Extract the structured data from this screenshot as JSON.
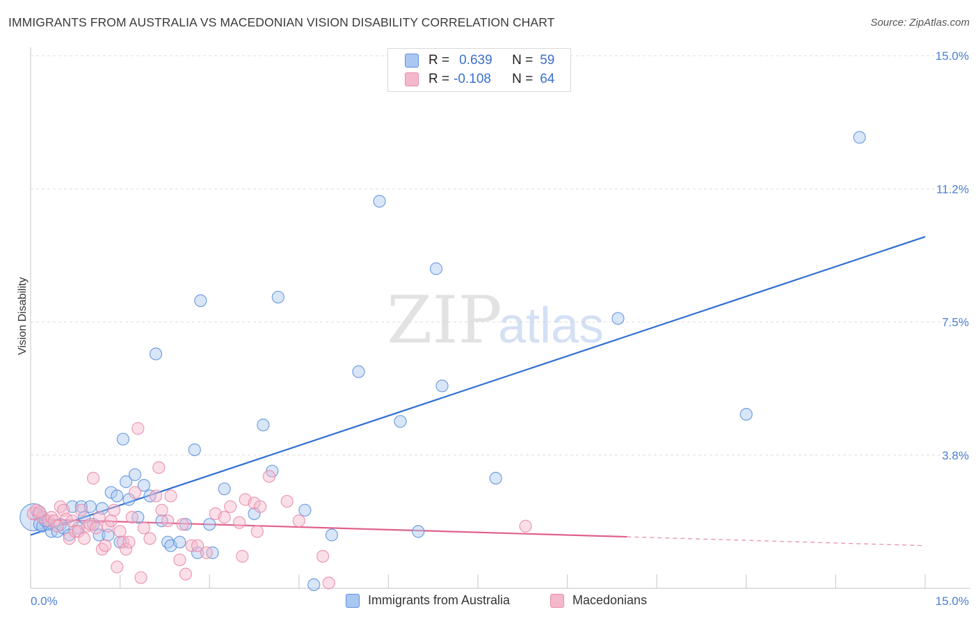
{
  "header": {
    "title": "IMMIGRANTS FROM AUSTRALIA VS MACEDONIAN VISION DISABILITY CORRELATION CHART",
    "source": "Source: ZipAtlas.com"
  },
  "watermark": {
    "zip": "ZIP",
    "atlas": "atlas"
  },
  "legend": {
    "rows": [
      {
        "r_label": "R =",
        "r_value": "0.639",
        "n_label": "N =",
        "n_value": "59"
      },
      {
        "r_label": "R =",
        "r_value": "-0.108",
        "n_label": "N =",
        "n_value": "64"
      }
    ]
  },
  "colors": {
    "blue": "#5b8fdb",
    "blue_fill": "#aac7f0",
    "blue_line": "#2f6fd1",
    "pink": "#e98aa8",
    "pink_fill": "#f4b8cb",
    "pink_line": "#e0608a",
    "axis_text": "#4a7fd4"
  },
  "chart_data": {
    "type": "scatter",
    "title": "IMMIGRANTS FROM AUSTRALIA VS MACEDONIAN VISION DISABILITY CORRELATION CHART",
    "xlabel": "",
    "ylabel": "Vision Disability",
    "xlim": [
      0,
      15
    ],
    "ylim": [
      0,
      15
    ],
    "x_tick_labels": [
      "0.0%",
      "15.0%"
    ],
    "y_tick_labels": [
      "15.0%",
      "11.2%",
      "7.5%",
      "3.8%"
    ],
    "y_tick_values": [
      15.0,
      11.25,
      7.5,
      3.75
    ],
    "series": [
      {
        "name": "Immigrants from Australia",
        "color": "blue",
        "trend": {
          "x": [
            0,
            15
          ],
          "y": [
            1.5,
            9.9
          ]
        },
        "points": [
          [
            0.05,
            2.0,
            30
          ],
          [
            0.12,
            2.1,
            12
          ],
          [
            0.15,
            1.8,
            10
          ],
          [
            0.2,
            1.75,
            10
          ],
          [
            0.3,
            1.8,
            10
          ],
          [
            0.35,
            1.6,
            10
          ],
          [
            0.45,
            1.6,
            10
          ],
          [
            0.5,
            1.8,
            10
          ],
          [
            0.55,
            1.7,
            10
          ],
          [
            0.65,
            1.5,
            10
          ],
          [
            0.7,
            2.3,
            10
          ],
          [
            0.8,
            1.7,
            10
          ],
          [
            0.85,
            2.3,
            10
          ],
          [
            0.9,
            2.0,
            10
          ],
          [
            1.0,
            2.3,
            10
          ],
          [
            1.05,
            1.8,
            10
          ],
          [
            1.15,
            1.5,
            10
          ],
          [
            1.2,
            2.25,
            10
          ],
          [
            1.3,
            1.5,
            10
          ],
          [
            1.35,
            2.7,
            10
          ],
          [
            1.45,
            2.6,
            10
          ],
          [
            1.5,
            1.3,
            10
          ],
          [
            1.55,
            4.2,
            10
          ],
          [
            1.6,
            3.0,
            10
          ],
          [
            1.65,
            2.5,
            10
          ],
          [
            1.75,
            3.2,
            10
          ],
          [
            1.8,
            2.0,
            10
          ],
          [
            1.9,
            2.9,
            10
          ],
          [
            2.0,
            2.6,
            10
          ],
          [
            2.1,
            6.6,
            10
          ],
          [
            2.2,
            1.9,
            10
          ],
          [
            2.3,
            1.3,
            10
          ],
          [
            2.35,
            1.2,
            10
          ],
          [
            2.5,
            1.3,
            10
          ],
          [
            2.6,
            1.8,
            10
          ],
          [
            2.75,
            3.9,
            10
          ],
          [
            2.8,
            1.0,
            10
          ],
          [
            2.85,
            8.1,
            10
          ],
          [
            3.0,
            1.8,
            10
          ],
          [
            3.05,
            1.0,
            10
          ],
          [
            3.25,
            2.8,
            10
          ],
          [
            3.75,
            2.1,
            10
          ],
          [
            3.9,
            4.6,
            10
          ],
          [
            4.05,
            3.3,
            10
          ],
          [
            4.15,
            8.2,
            10
          ],
          [
            4.6,
            2.2,
            10
          ],
          [
            4.75,
            0.1,
            10
          ],
          [
            5.05,
            1.5,
            10
          ],
          [
            5.5,
            6.1,
            10
          ],
          [
            5.85,
            10.9,
            10
          ],
          [
            6.2,
            4.7,
            10
          ],
          [
            6.5,
            1.6,
            10
          ],
          [
            6.8,
            9.0,
            10
          ],
          [
            6.9,
            5.7,
            10
          ],
          [
            7.8,
            3.1,
            10
          ],
          [
            9.85,
            7.6,
            10
          ],
          [
            12.0,
            4.9,
            10
          ],
          [
            13.9,
            12.7,
            10
          ],
          [
            0.25,
            1.9,
            10
          ]
        ]
      },
      {
        "name": "Macedonians",
        "color": "pink",
        "trend": {
          "x": [
            0,
            10.0
          ],
          "y": [
            1.95,
            1.45
          ]
        },
        "trend_dashed": {
          "x": [
            10.0,
            15
          ],
          "y": [
            1.45,
            1.2
          ]
        },
        "points": [
          [
            0.05,
            2.1,
            14
          ],
          [
            0.1,
            2.2,
            10
          ],
          [
            0.2,
            2.0,
            10
          ],
          [
            0.3,
            1.9,
            10
          ],
          [
            0.35,
            2.0,
            10
          ],
          [
            0.4,
            1.9,
            10
          ],
          [
            0.45,
            1.75,
            10
          ],
          [
            0.5,
            2.3,
            10
          ],
          [
            0.55,
            2.2,
            10
          ],
          [
            0.6,
            1.95,
            10
          ],
          [
            0.65,
            1.4,
            10
          ],
          [
            0.7,
            1.9,
            10
          ],
          [
            0.75,
            1.6,
            10
          ],
          [
            0.8,
            1.6,
            10
          ],
          [
            0.85,
            2.2,
            10
          ],
          [
            0.9,
            1.4,
            10
          ],
          [
            0.95,
            1.75,
            10
          ],
          [
            1.0,
            1.8,
            10
          ],
          [
            1.05,
            3.1,
            10
          ],
          [
            1.1,
            1.7,
            10
          ],
          [
            1.15,
            2.0,
            10
          ],
          [
            1.2,
            1.1,
            10
          ],
          [
            1.25,
            1.2,
            10
          ],
          [
            1.3,
            1.75,
            10
          ],
          [
            1.35,
            1.9,
            10
          ],
          [
            1.4,
            2.2,
            10
          ],
          [
            1.45,
            0.6,
            10
          ],
          [
            1.5,
            1.6,
            10
          ],
          [
            1.55,
            1.3,
            10
          ],
          [
            1.6,
            1.1,
            10
          ],
          [
            1.65,
            1.3,
            10
          ],
          [
            1.7,
            2.0,
            10
          ],
          [
            1.75,
            2.7,
            10
          ],
          [
            1.8,
            4.5,
            10
          ],
          [
            1.85,
            0.3,
            10
          ],
          [
            1.9,
            1.7,
            10
          ],
          [
            2.0,
            1.4,
            10
          ],
          [
            2.1,
            2.6,
            10
          ],
          [
            2.15,
            3.4,
            10
          ],
          [
            2.2,
            2.2,
            10
          ],
          [
            2.3,
            1.9,
            10
          ],
          [
            2.35,
            2.6,
            10
          ],
          [
            2.5,
            0.8,
            10
          ],
          [
            2.55,
            1.8,
            10
          ],
          [
            2.6,
            0.4,
            10
          ],
          [
            2.7,
            1.2,
            10
          ],
          [
            2.8,
            1.2,
            10
          ],
          [
            3.1,
            2.1,
            10
          ],
          [
            3.25,
            2.0,
            10
          ],
          [
            3.35,
            2.3,
            10
          ],
          [
            3.5,
            1.85,
            10
          ],
          [
            3.55,
            0.9,
            10
          ],
          [
            3.6,
            2.5,
            10
          ],
          [
            3.75,
            2.4,
            10
          ],
          [
            3.85,
            2.3,
            10
          ],
          [
            4.0,
            3.15,
            10
          ],
          [
            4.3,
            2.45,
            10
          ],
          [
            4.5,
            1.9,
            10
          ],
          [
            4.9,
            0.9,
            10
          ],
          [
            5.0,
            0.15,
            10
          ],
          [
            8.3,
            1.75,
            10
          ],
          [
            0.15,
            2.15,
            10
          ],
          [
            2.95,
            1.0,
            10
          ],
          [
            3.8,
            1.6,
            10
          ]
        ]
      }
    ]
  },
  "bottom_legend": {
    "items": [
      {
        "label": "Immigrants from Australia"
      },
      {
        "label": "Macedonians"
      }
    ]
  }
}
